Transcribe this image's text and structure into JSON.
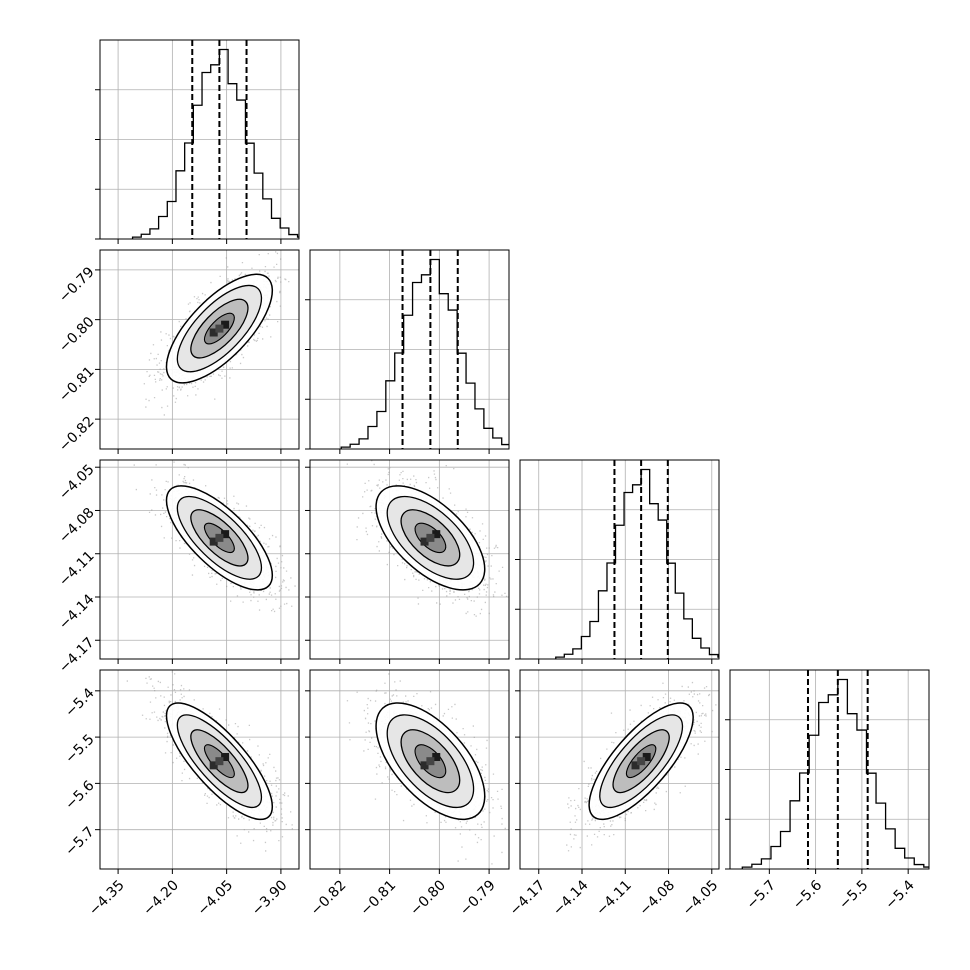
{
  "chart_data": {
    "type": "corner",
    "parameters": [
      {
        "range": [
          -4.4,
          -3.85
        ],
        "ticks": [
          -4.35,
          -4.2,
          -4.05,
          -3.9
        ],
        "tick_labels": [
          "−4.35",
          "−4.20",
          "−4.05",
          "−3.90"
        ],
        "mean": -4.07,
        "sigma": 0.075
      },
      {
        "range": [
          -0.826,
          -0.786
        ],
        "ticks": [
          -0.82,
          -0.81,
          -0.8,
          -0.79
        ],
        "tick_labels": [
          "−0.82",
          "−0.81",
          "−0.80",
          "−0.79"
        ],
        "mean": -0.8018,
        "sigma": 0.0056
      },
      {
        "range": [
          -4.183,
          -4.045
        ],
        "ticks": [
          -4.17,
          -4.14,
          -4.11,
          -4.08,
          -4.05
        ],
        "tick_labels": [
          "−4.17",
          "−4.14",
          "−4.11",
          "−4.08",
          "−4.05"
        ],
        "mean": -4.099,
        "sigma": 0.0185
      },
      {
        "range": [
          -5.785,
          -5.355
        ],
        "ticks": [
          -5.7,
          -5.6,
          -5.5,
          -5.4
        ],
        "tick_labels": [
          "−5.7",
          "−5.6",
          "−5.5",
          "−5.4"
        ],
        "mean": -5.552,
        "sigma": 0.0645
      }
    ],
    "quantiles": [
      0.16,
      0.5,
      0.84
    ],
    "quantile_values": [
      [
        -4.145,
        -4.07,
        -3.995
      ],
      [
        -0.8074,
        -0.8018,
        -0.7963
      ],
      [
        -4.1175,
        -4.099,
        -4.0805
      ],
      [
        -5.6165,
        -5.552,
        -5.4875
      ]
    ],
    "correlations": {
      "1-0": 0.7,
      "2-0": -0.72,
      "2-1": -0.6,
      "3-0": -0.78,
      "3-1": -0.6,
      "3-2": 0.75
    },
    "bins": 20,
    "grid": true,
    "colors": {
      "line": "#000000",
      "grid": "#b0b0b0",
      "points": "#9a9a9a"
    }
  }
}
